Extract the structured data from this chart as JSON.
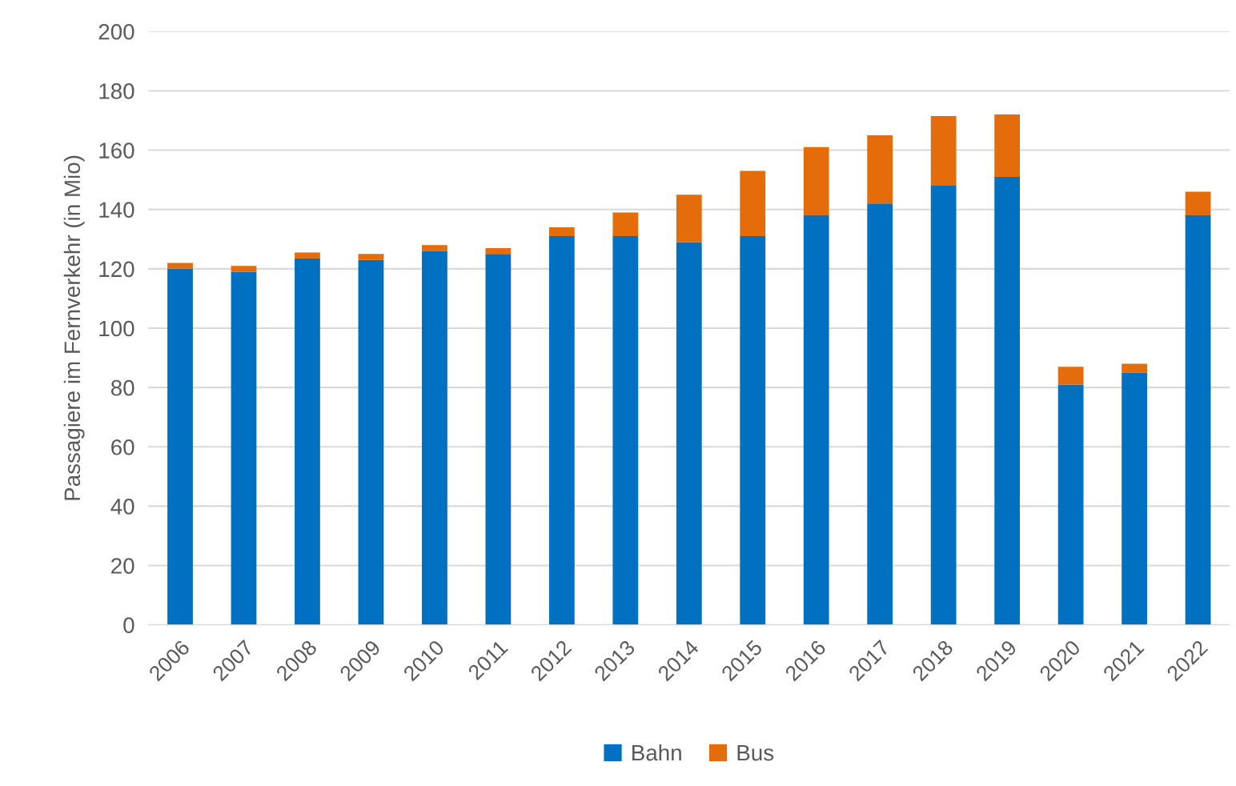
{
  "chart_data": {
    "type": "bar",
    "ylabel": "Passagiere im Fernverkehr (in Mio)",
    "categories": [
      "2006",
      "2007",
      "2008",
      "2009",
      "2010",
      "2011",
      "2012",
      "2013",
      "2014",
      "2015",
      "2016",
      "2017",
      "2018",
      "2019",
      "2020",
      "2021",
      "2022"
    ],
    "series": [
      {
        "name": "Bahn",
        "color": "#0070c0",
        "values": [
          120,
          119,
          123.5,
          123,
          126,
          125,
          131,
          131,
          129,
          131,
          138,
          142,
          148,
          151,
          81,
          85,
          138
        ]
      },
      {
        "name": "Bus",
        "color": "#e46c0a",
        "values": [
          2,
          2,
          2,
          2,
          2,
          2,
          3,
          8,
          16,
          22,
          23,
          23,
          23.5,
          21,
          6,
          3,
          8
        ]
      }
    ],
    "stacked": true,
    "ylim": [
      0,
      200
    ],
    "yticks": [
      0,
      20,
      40,
      60,
      80,
      100,
      120,
      140,
      160,
      180,
      200
    ],
    "grid": "y",
    "legend": "bottom"
  }
}
